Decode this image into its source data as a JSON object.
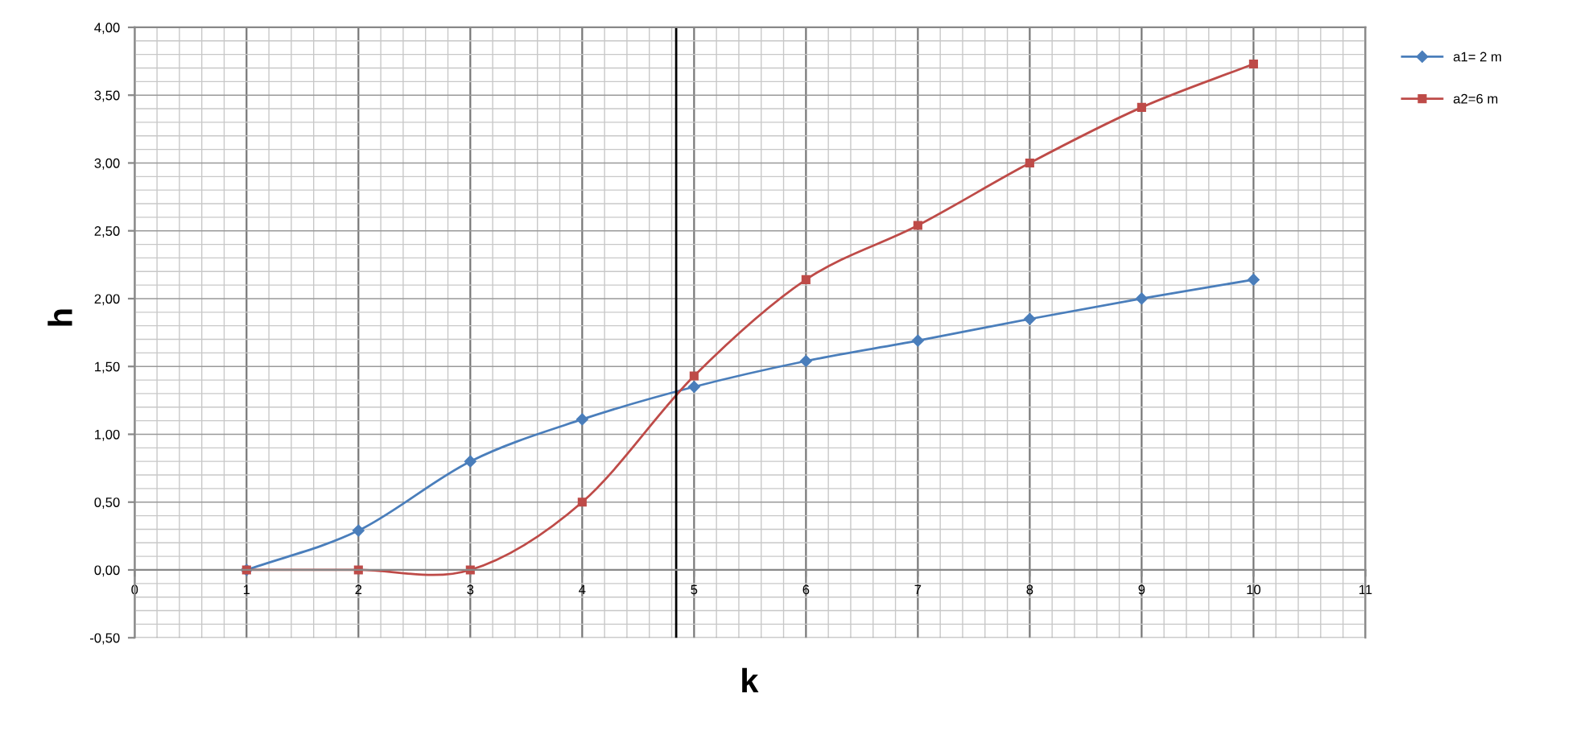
{
  "chart_data": {
    "type": "line",
    "xlabel": "k",
    "ylabel": "h",
    "xlim": [
      0,
      11
    ],
    "xticks": [
      0,
      1,
      2,
      3,
      4,
      5,
      6,
      7,
      8,
      9,
      10,
      11
    ],
    "ylim": [
      -0.5,
      4
    ],
    "yticks": [
      {
        "value": -0.5,
        "label": "-0,50"
      },
      {
        "value": 0,
        "label": "0,00"
      },
      {
        "value": 0.5,
        "label": "0,50"
      },
      {
        "value": 1,
        "label": "1,00"
      },
      {
        "value": 1.5,
        "label": "1,50"
      },
      {
        "value": 2,
        "label": "2,00"
      },
      {
        "value": 2.5,
        "label": "2,50"
      },
      {
        "value": 3,
        "label": "3,00"
      },
      {
        "value": 3.5,
        "label": "3,50"
      },
      {
        "value": 4,
        "label": "4,00"
      }
    ],
    "x": [
      1,
      2,
      3,
      4,
      5,
      6,
      7,
      8,
      9,
      10
    ],
    "series": [
      {
        "name": "a1= 2 m",
        "color": "#4a7ebb",
        "marker": "diamond",
        "values": [
          0,
          0.29,
          0.8,
          1.11,
          1.35,
          1.54,
          1.69,
          1.85,
          2.0,
          2.14
        ]
      },
      {
        "name": "a2=6 m",
        "color": "#be4b48",
        "marker": "square",
        "values": [
          0,
          0,
          0,
          0.5,
          1.43,
          2.14,
          2.54,
          3.0,
          3.41,
          3.73
        ]
      }
    ],
    "ref_lines": [
      {
        "axis": "x",
        "value": 4.84,
        "color": "#000000",
        "line_style": "solid"
      }
    ],
    "grid": true,
    "legend": "top right",
    "line_style": "solid"
  }
}
